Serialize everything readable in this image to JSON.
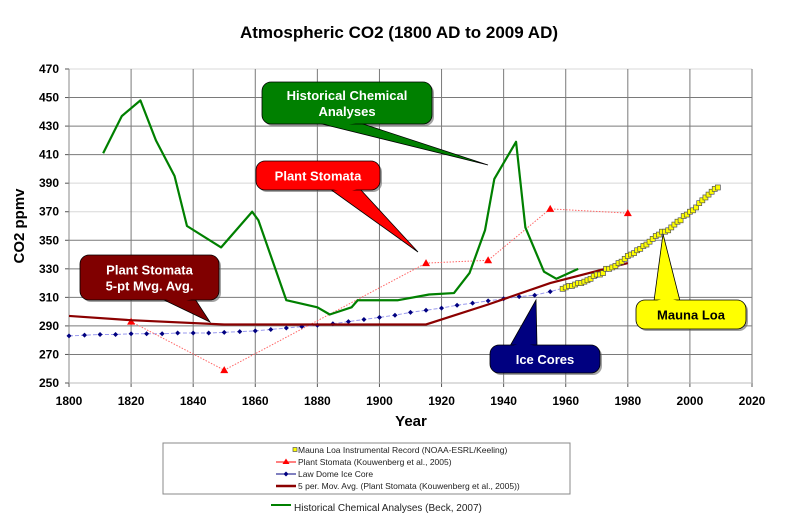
{
  "chart_data": {
    "type": "line",
    "title": "Atmospheric CO2 (1800 AD to 2009 AD)",
    "xlabel": "Year",
    "ylabel": "CO2 ppmv",
    "xlim": [
      1800,
      2020
    ],
    "ylim": [
      250,
      470
    ],
    "x_ticks": [
      1800,
      1820,
      1840,
      1860,
      1880,
      1900,
      1920,
      1940,
      1960,
      1980,
      2000,
      2020
    ],
    "y_ticks": [
      250,
      270,
      290,
      310,
      330,
      350,
      370,
      390,
      410,
      430,
      450,
      470
    ],
    "grid": true,
    "legend_position": "bottom",
    "series": [
      {
        "key": "mauna_loa",
        "name": "Mauna Loa Instrumental Record (NOAA-ESRL/Keeling)",
        "color": "#ffff00",
        "marker": "square",
        "x": [
          1959,
          1960,
          1961,
          1962,
          1963,
          1964,
          1965,
          1966,
          1967,
          1968,
          1969,
          1970,
          1971,
          1972,
          1973,
          1974,
          1975,
          1976,
          1977,
          1978,
          1979,
          1980,
          1981,
          1982,
          1983,
          1984,
          1985,
          1986,
          1987,
          1988,
          1989,
          1990,
          1991,
          1992,
          1993,
          1994,
          1995,
          1996,
          1997,
          1998,
          1999,
          2000,
          2001,
          2002,
          2003,
          2004,
          2005,
          2006,
          2007,
          2008,
          2009
        ],
        "y": [
          316,
          317,
          318,
          318,
          319,
          320,
          320,
          321,
          322,
          323,
          325,
          326,
          326,
          327,
          330,
          330,
          331,
          332,
          334,
          335,
          337,
          339,
          340,
          341,
          343,
          344,
          346,
          347,
          349,
          351,
          353,
          354,
          356,
          356,
          357,
          359,
          361,
          363,
          364,
          367,
          368,
          370,
          371,
          373,
          376,
          378,
          380,
          382,
          384,
          386,
          387
        ]
      },
      {
        "key": "plant_stomata",
        "name": "Plant Stomata (Kouwenberg et al., 2005)",
        "color": "#ff0000",
        "marker": "triangle",
        "x": [
          1820,
          1850,
          1915,
          1935,
          1955,
          1980
        ],
        "y": [
          293,
          259,
          334,
          336,
          372,
          369
        ]
      },
      {
        "key": "law_dome",
        "name": "Law Dome Ice Core",
        "color": "#000080",
        "marker": "diamond",
        "x": [
          1800,
          1805,
          1810,
          1815,
          1820,
          1825,
          1830,
          1835,
          1840,
          1845,
          1850,
          1855,
          1860,
          1865,
          1870,
          1875,
          1880,
          1885,
          1890,
          1895,
          1900,
          1905,
          1910,
          1915,
          1920,
          1925,
          1930,
          1935,
          1940,
          1945,
          1950,
          1955,
          1960,
          1965,
          1970,
          1975
        ],
        "y": [
          283,
          283.5,
          284,
          284,
          284.5,
          284.5,
          284.5,
          285,
          285,
          285,
          285.5,
          286,
          286.5,
          287.5,
          288.5,
          289.5,
          290.5,
          291.5,
          293,
          294.5,
          296,
          297.5,
          299.5,
          301,
          302.5,
          304.5,
          306,
          307.5,
          309,
          310.5,
          311.5,
          314,
          317,
          320,
          325,
          331
        ]
      },
      {
        "key": "moving_avg",
        "name": "5 per. Mov. Avg. (Plant Stomata (Kouwenberg et al., 2005))",
        "color": "#8b0000",
        "marker": "none",
        "x": [
          1800,
          1820,
          1850,
          1915,
          1935,
          1955,
          1980
        ],
        "y": [
          297,
          294,
          291,
          291,
          305,
          320,
          334
        ]
      },
      {
        "key": "historical",
        "name": "Historical Chemical Analyses (Beck, 2007)",
        "color": "#008000",
        "marker": "none",
        "x": [
          1811,
          1817,
          1823,
          1828,
          1834,
          1838,
          1849,
          1859,
          1861,
          1870,
          1880,
          1884,
          1891,
          1893,
          1906,
          1916,
          1924,
          1929,
          1934,
          1937,
          1944,
          1947,
          1953,
          1957,
          1964
        ],
        "y": [
          411,
          437,
          448,
          420,
          395,
          360,
          345,
          370,
          364,
          308,
          303,
          298,
          303,
          308,
          308,
          312,
          313,
          327,
          357,
          393,
          419,
          359,
          328,
          323,
          330
        ]
      }
    ],
    "annotations": [
      {
        "key": "historical",
        "text_lines": [
          "Historical Chemical",
          "Analyses"
        ],
        "fill": "#008000",
        "text_color": "#ffffff",
        "target": {
          "x": 1937,
          "y": 400
        }
      },
      {
        "key": "stomata",
        "text_lines": [
          "Plant Stomata"
        ],
        "fill": "#ff0000",
        "text_color": "#ffffff",
        "target": {
          "x": 1915,
          "y": 341
        }
      },
      {
        "key": "movavg",
        "text_lines": [
          "Plant Stomata",
          "5-pt Mvg. Avg."
        ],
        "fill": "#800000",
        "text_color": "#ffffff",
        "target": {
          "x": 1845,
          "y": 292
        }
      },
      {
        "key": "ice",
        "text_lines": [
          "Ice Cores"
        ],
        "fill": "#000080",
        "text_color": "#ffffff",
        "target": {
          "x": 1950,
          "y": 309
        }
      },
      {
        "key": "mauna",
        "text_lines": [
          "Mauna Loa"
        ],
        "fill": "#ffff00",
        "text_color": "#000000",
        "target": {
          "x": 1991,
          "y": 356
        }
      }
    ]
  }
}
